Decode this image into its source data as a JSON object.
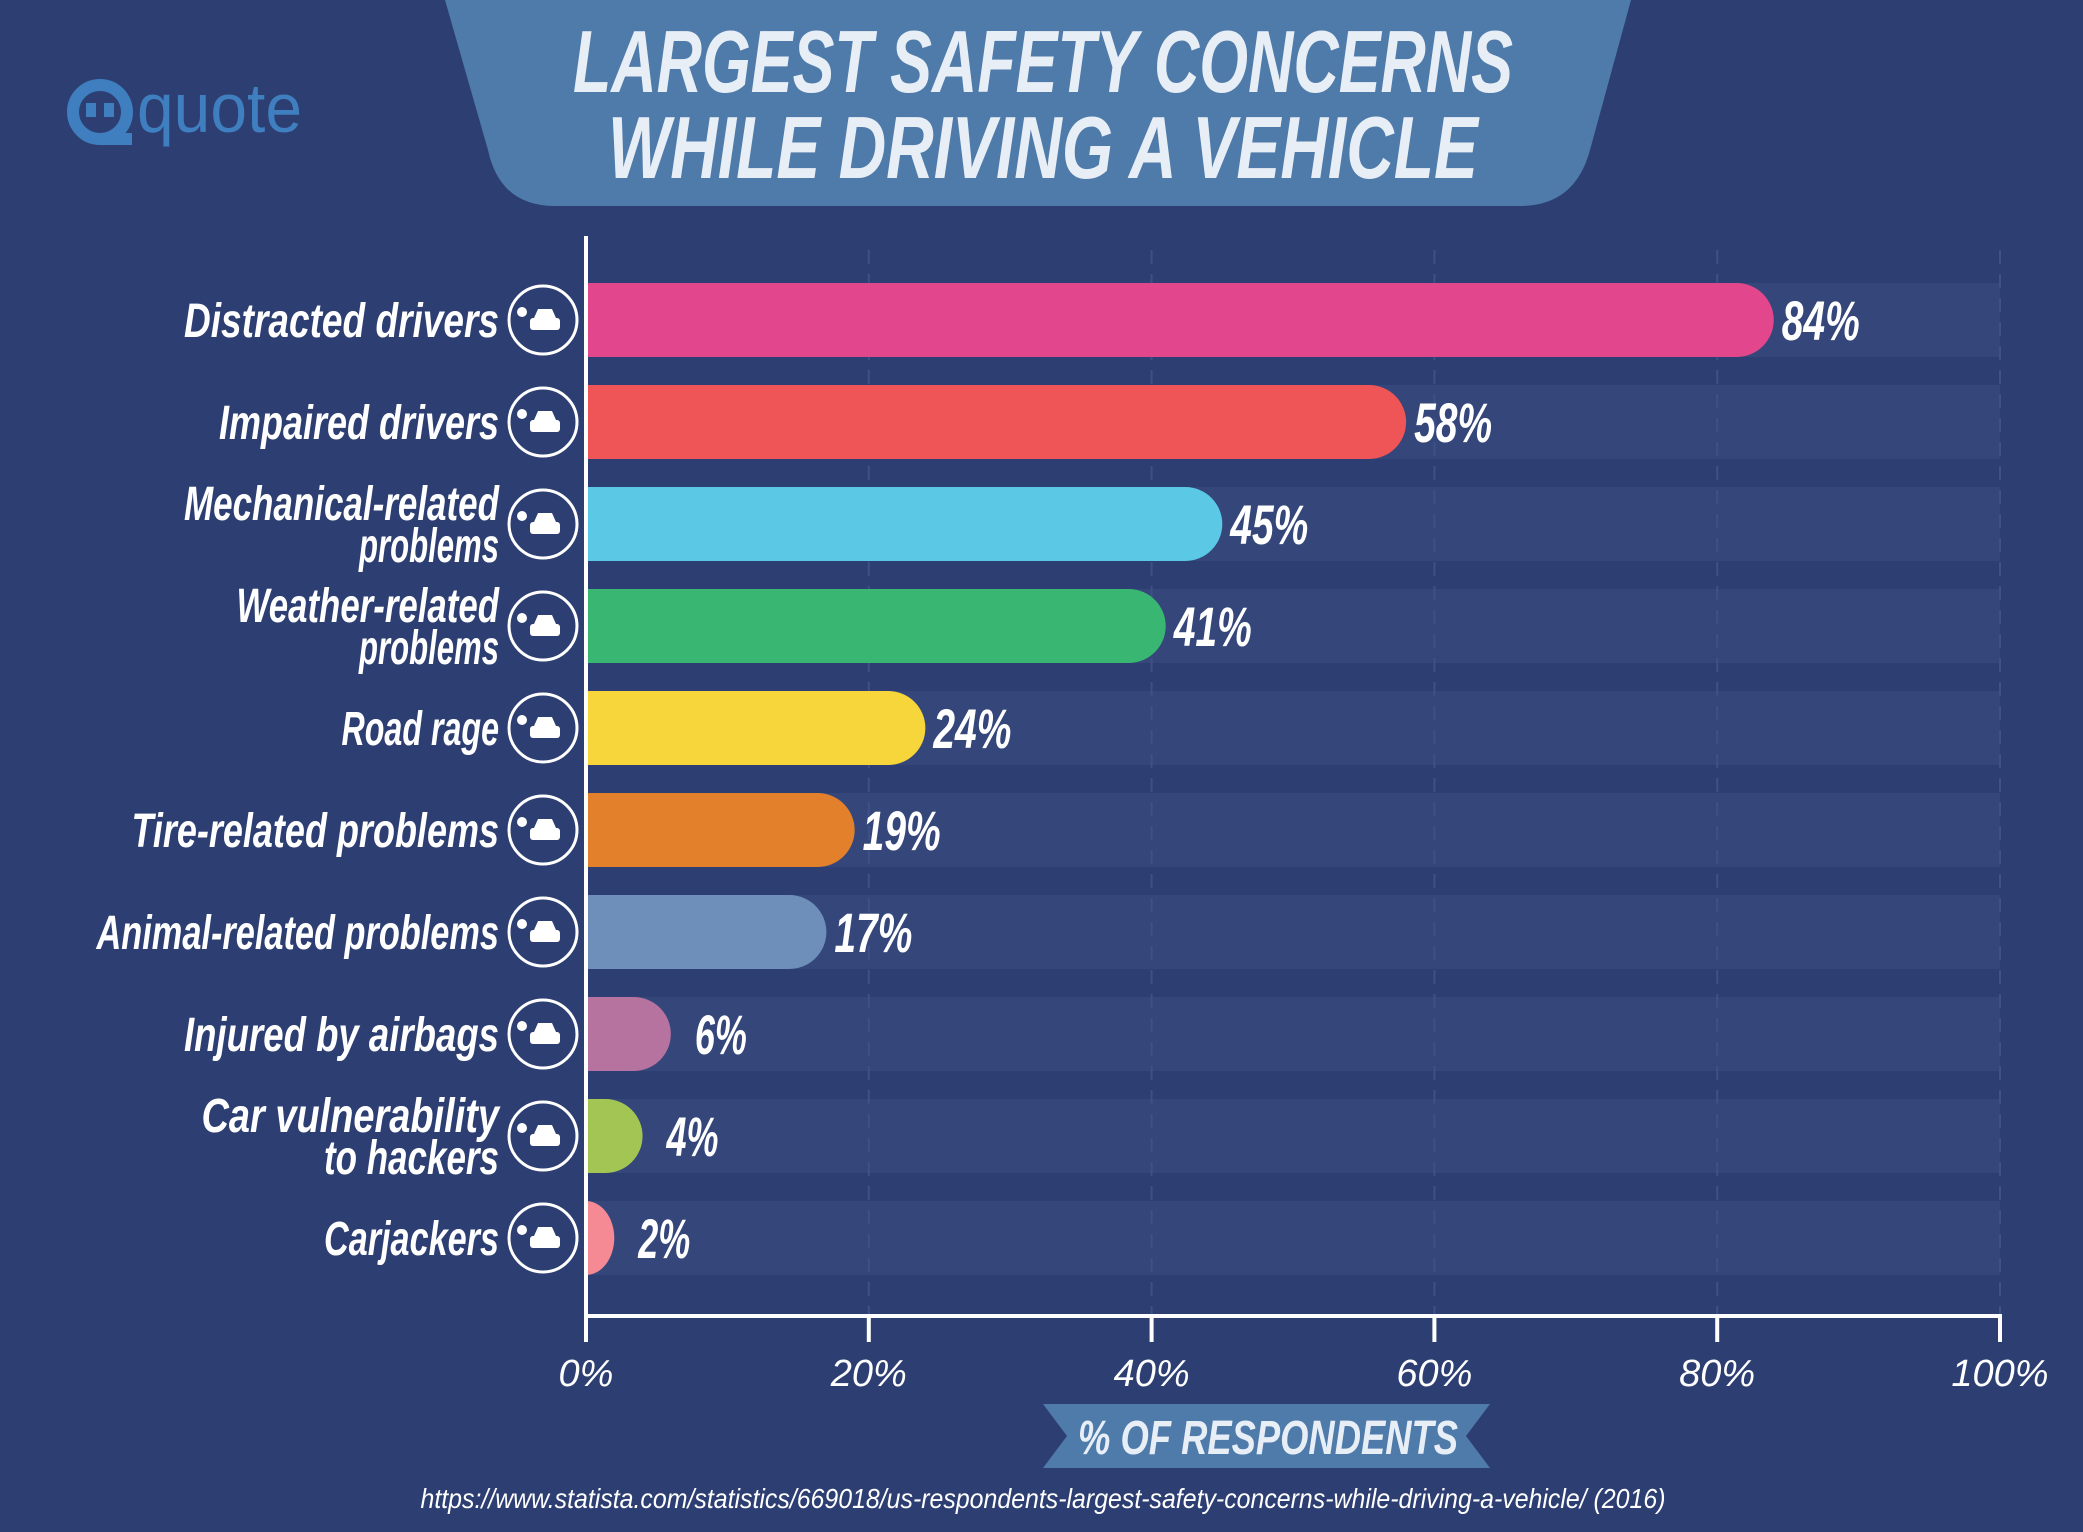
{
  "brand": {
    "logo_text": "quote",
    "color": "#3f7fbf"
  },
  "title": {
    "line1": "LARGEST SAFETY CONCERNS",
    "line2": "WHILE DRIVING A VEHICLE"
  },
  "source": "https://www.statista.com/statistics/669018/us-respondents-largest-safety-concerns-while-driving-a-vehicle/ (2016)",
  "colors": {
    "background": "#2d3e72",
    "banner": "#4f7bab",
    "track": "#34467a",
    "text": "#ffffff"
  },
  "chart_data": {
    "type": "bar",
    "orientation": "horizontal",
    "xlabel": "% OF RESPONDENTS",
    "xlim": [
      0,
      100
    ],
    "x_ticks": [
      "0%",
      "20%",
      "40%",
      "60%",
      "80%",
      "100%"
    ],
    "grid": true,
    "categories": [
      {
        "label": [
          "Distracted drivers"
        ],
        "icon": "distracted-driver-icon"
      },
      {
        "label": [
          "Impaired drivers"
        ],
        "icon": "no-drinking-icon"
      },
      {
        "label": [
          "Mechanical-related",
          "problems"
        ],
        "icon": "mechanic-icon"
      },
      {
        "label": [
          "Weather-related",
          "problems"
        ],
        "icon": "weather-thermometer-icon"
      },
      {
        "label": [
          "Road rage"
        ],
        "icon": "road-rage-icon"
      },
      {
        "label": [
          "Tire-related problems"
        ],
        "icon": "car-lift-icon"
      },
      {
        "label": [
          "Animal-related problems"
        ],
        "icon": "animals-icon"
      },
      {
        "label": [
          "Injured by airbags"
        ],
        "icon": "airbag-icon"
      },
      {
        "label": [
          "Car vulnerability",
          "to hackers"
        ],
        "icon": "car-hacker-icon"
      },
      {
        "label": [
          "Carjackers"
        ],
        "icon": "carjacker-icon"
      }
    ],
    "values": [
      84,
      58,
      45,
      41,
      24,
      19,
      17,
      6,
      4,
      2
    ],
    "value_labels": [
      "84%",
      "58%",
      "45%",
      "41%",
      "24%",
      "19%",
      "17%",
      "6%",
      "4%",
      "2%"
    ],
    "bar_colors": [
      "#e2468c",
      "#ef5456",
      "#5bc8e6",
      "#39b772",
      "#f6d63a",
      "#e2802b",
      "#6e8fba",
      "#b7739f",
      "#a3c553",
      "#f58a94"
    ]
  }
}
